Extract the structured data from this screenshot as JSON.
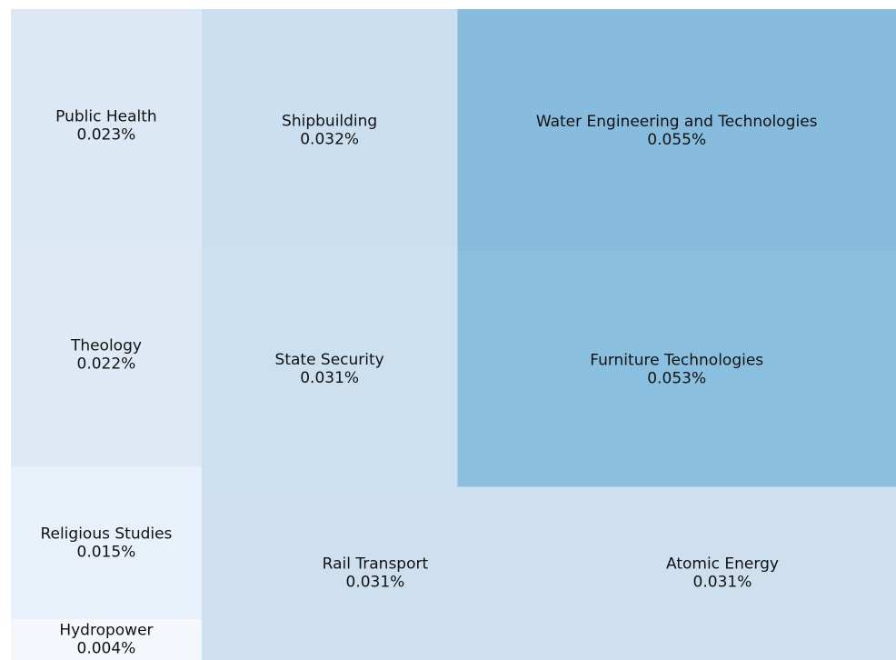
{
  "chart_data": {
    "type": "treemap",
    "categories": [
      "Public Health",
      "Theology",
      "Religious Studies",
      "Hydropower",
      "Shipbuilding",
      "State Security",
      "Water Engineering and Technologies",
      "Furniture Technologies",
      "Rail Transport",
      "Atomic Energy"
    ],
    "values": [
      0.023,
      0.022,
      0.015,
      0.004,
      0.032,
      0.031,
      0.055,
      0.053,
      0.031,
      0.031
    ],
    "value_labels": [
      "0.023%",
      "0.022%",
      "0.015%",
      "0.004%",
      "0.032%",
      "0.031%",
      "0.055%",
      "0.053%",
      "0.031%",
      "0.031%"
    ],
    "colors": [
      "#dce8f4",
      "#dee9f5",
      "#e8f1f9",
      "#f4f8fc",
      "#cbdff0",
      "#cde0f0",
      "#88bcde",
      "#8bbfe0",
      "#cedff0",
      "#cedff0"
    ]
  }
}
